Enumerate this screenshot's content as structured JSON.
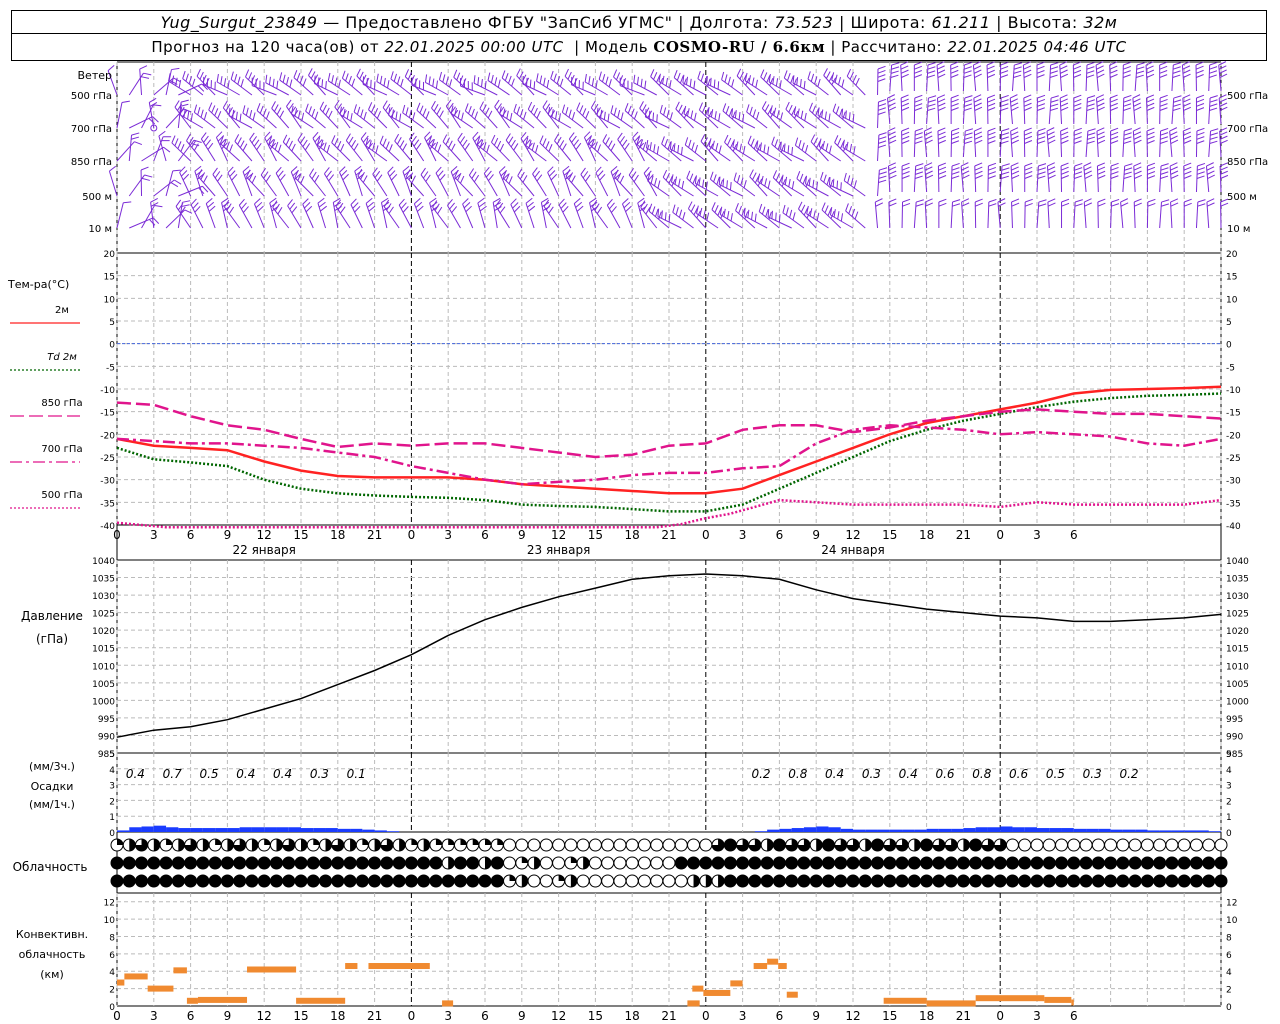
{
  "header": {
    "station": "Yug_Surgut_23849",
    "provider": "— Предоставлено ФГБУ \"ЗапСиб УГМС\"",
    "lon_label": "| Долгота:",
    "lon": "73.523",
    "lat_label": "| Широта:",
    "lat": "61.211",
    "alt_label": "| Высота:",
    "alt": "32м",
    "forecast_label": "Прогноз на 120 часа(ов) от",
    "forecast_time": "22.01.2025 00:00 UTC",
    "model_label": "| Модель",
    "model": "COSMO-RU / 6.6км",
    "calc_label": "| Рассчитано:",
    "calc_time": "22.01.2025 04:46 UTC"
  },
  "time_axis": {
    "hour_labels": [
      "0",
      "3",
      "6",
      "9",
      "12",
      "15",
      "18",
      "21",
      "0",
      "3",
      "6",
      "9",
      "12",
      "15",
      "18",
      "21",
      "0",
      "3",
      "6",
      "9",
      "12",
      "15",
      "18",
      "21",
      "0",
      "3",
      "6"
    ],
    "day_labels": [
      "22 января",
      "23 января",
      "24 января"
    ]
  },
  "panels": {
    "wind": {
      "title": "Ветер",
      "levels": [
        "500 гПа",
        "700 гПа",
        "850 гПа",
        "500 м",
        "10 м"
      ],
      "colors": {
        "barb": "#7b2bd6"
      }
    },
    "temperature": {
      "title": "Тем-ра(°C)",
      "legend": [
        {
          "label": "2м",
          "color": "#ff2222",
          "dash": "solid"
        },
        {
          "label": "Td 2м",
          "color": "#006600",
          "dash": "dotted"
        },
        {
          "label": "850 гПа",
          "color": "#e0148c",
          "dash": "long-dash"
        },
        {
          "label": "700 гПа",
          "color": "#e0148c",
          "dash": "dash-dot"
        },
        {
          "label": "500 гПа",
          "color": "#e0148c",
          "dash": "dotted"
        }
      ],
      "ticks": [
        "20",
        "15",
        "10",
        "5",
        "0",
        "-5",
        "-10",
        "-15",
        "-20",
        "-25",
        "-30",
        "-35",
        "-40"
      ]
    },
    "pressure": {
      "title": "Давление",
      "unit": "(гПа)",
      "ticks": [
        "1040",
        "1035",
        "1030",
        "1025",
        "1020",
        "1015",
        "1010",
        "1005",
        "1000",
        "995",
        "990",
        "985"
      ]
    },
    "precip": {
      "title_unit3": "(мм/3ч.)",
      "title": "Осадки",
      "title_unit1": "(мм/1ч.)",
      "ticks": [
        "5",
        "4",
        "3",
        "2",
        "1",
        "0"
      ],
      "labels": [
        {
          "t": 3,
          "v": "0.4"
        },
        {
          "t": 6,
          "v": "0.7"
        },
        {
          "t": 9,
          "v": "0.5"
        },
        {
          "t": 12,
          "v": "0.4"
        },
        {
          "t": 15,
          "v": "0.4"
        },
        {
          "t": 18,
          "v": "0.3"
        },
        {
          "t": 21,
          "v": "0.1"
        },
        {
          "t": 54,
          "v": "0.2"
        },
        {
          "t": 57,
          "v": "0.8"
        },
        {
          "t": 60,
          "v": "0.4"
        },
        {
          "t": 63,
          "v": "0.3"
        },
        {
          "t": 66,
          "v": "0.4"
        },
        {
          "t": 69,
          "v": "0.6"
        },
        {
          "t": 72,
          "v": "0.8"
        },
        {
          "t": 75,
          "v": "0.6"
        },
        {
          "t": 78,
          "v": "0.5"
        },
        {
          "t": 81,
          "v": "0.3"
        },
        {
          "t": 84,
          "v": "0.2"
        }
      ]
    },
    "clouds": {
      "title": "Облачность"
    },
    "convective": {
      "title_lines": [
        "Конвективн.",
        "облачность",
        "(км)"
      ],
      "ticks": [
        "12",
        "10",
        "8",
        "6",
        "4",
        "2",
        "0"
      ]
    }
  },
  "chart_data": [
    {
      "type": "line",
      "title": "Тем-ра(°C)",
      "x_unit": "hours from 22.01.2025 00:00 UTC",
      "ylim": [
        -40,
        20
      ],
      "series": [
        {
          "name": "2м",
          "x": [
            0,
            3,
            6,
            9,
            12,
            15,
            18,
            21,
            24,
            27,
            30,
            33,
            36,
            39,
            42,
            45,
            48,
            51,
            54,
            57,
            60,
            63,
            66,
            69,
            72,
            75,
            78,
            81,
            84,
            87,
            90
          ],
          "y": [
            -21,
            -22.5,
            -23,
            -23.5,
            -26,
            -28,
            -29.2,
            -29.5,
            -29.5,
            -29.5,
            -30,
            -31,
            -31.5,
            -32,
            -32.5,
            -33,
            -33,
            -32,
            -29,
            -26,
            -23,
            -20,
            -17.5,
            -16,
            -14.5,
            -13,
            -11,
            -10.2,
            -10,
            -9.8,
            -9.5
          ]
        },
        {
          "name": "Td 2м",
          "x": [
            0,
            3,
            6,
            9,
            12,
            15,
            18,
            21,
            24,
            27,
            30,
            33,
            36,
            39,
            42,
            45,
            48,
            51,
            54,
            57,
            60,
            63,
            66,
            69,
            72,
            75,
            78,
            81,
            84,
            87,
            90
          ],
          "y": [
            -23,
            -25.5,
            -26.2,
            -27,
            -30,
            -32,
            -33,
            -33.5,
            -33.8,
            -34,
            -34.5,
            -35.5,
            -35.8,
            -36,
            -36.5,
            -37,
            -37,
            -35.5,
            -32,
            -28.5,
            -25,
            -21.5,
            -19,
            -17,
            -15.5,
            -14,
            -12.8,
            -12,
            -11.5,
            -11.3,
            -11
          ]
        },
        {
          "name": "850 гПа",
          "x": [
            0,
            3,
            6,
            9,
            12,
            15,
            18,
            21,
            24,
            27,
            30,
            33,
            36,
            39,
            42,
            45,
            48,
            51,
            54,
            57,
            60,
            63,
            66,
            69,
            72,
            75,
            78,
            81,
            84,
            87,
            90
          ],
          "y": [
            -13,
            -13.5,
            -16,
            -18,
            -19,
            -21,
            -22.8,
            -22,
            -22.5,
            -22,
            -22,
            -23,
            -24,
            -25,
            -24.5,
            -22.5,
            -22,
            -19,
            -18,
            -18,
            -19.5,
            -18.5,
            -17,
            -16,
            -15,
            -14.5,
            -15,
            -15.5,
            -15.5,
            -16,
            -16.5
          ]
        },
        {
          "name": "700 гПа",
          "x": [
            0,
            3,
            6,
            9,
            12,
            15,
            18,
            21,
            24,
            27,
            30,
            33,
            36,
            39,
            42,
            45,
            48,
            51,
            54,
            57,
            60,
            63,
            66,
            69,
            72,
            75,
            78,
            81,
            84,
            87,
            90
          ],
          "y": [
            -21,
            -21.5,
            -22,
            -22,
            -22.5,
            -23,
            -24,
            -25,
            -27,
            -28.5,
            -30,
            -31,
            -30.5,
            -30,
            -29,
            -28.5,
            -28.5,
            -27.5,
            -27,
            -22,
            -19,
            -18,
            -18.5,
            -19,
            -20,
            -19.5,
            -20,
            -20.5,
            -22,
            -22.5,
            -21
          ]
        },
        {
          "name": "500 гПа",
          "x": [
            0,
            2,
            4,
            6,
            8,
            10,
            12,
            14,
            16,
            18,
            20,
            22,
            24,
            26,
            28,
            30,
            32,
            34,
            36,
            38,
            40,
            42,
            44,
            46,
            48,
            50,
            52,
            54,
            57,
            60,
            63,
            66,
            69,
            72,
            75,
            78,
            81,
            84,
            87,
            90
          ],
          "y": [
            -39.5,
            -40,
            -40.5,
            -41,
            -41,
            -41,
            -41,
            -41,
            -41,
            -41,
            -41,
            -41,
            -41,
            -41,
            -41,
            -41,
            -41,
            -41,
            -41,
            -41,
            -41,
            -41,
            -41,
            -39.8,
            -38.5,
            -37.5,
            -36,
            -34.5,
            -35,
            -35.5,
            -35.5,
            -35.5,
            -35.5,
            -36,
            -35,
            -35.5,
            -35.5,
            -35.5,
            -35.5,
            -34.5
          ]
        }
      ]
    },
    {
      "type": "line",
      "title": "Давление (гПа)",
      "x_unit": "hours",
      "ylim": [
        985,
        1040
      ],
      "series": [
        {
          "name": "pressure",
          "x": [
            0,
            3,
            6,
            9,
            12,
            15,
            18,
            21,
            24,
            27,
            30,
            33,
            36,
            39,
            42,
            45,
            48,
            51,
            54,
            57,
            60,
            63,
            66,
            69,
            72,
            75,
            78,
            81,
            84,
            87,
            90
          ],
          "y": [
            989.5,
            991.5,
            992.5,
            994.5,
            997.5,
            1000.5,
            1004.5,
            1008.5,
            1013,
            1018.5,
            1023,
            1026.5,
            1029.5,
            1032,
            1034.5,
            1035.5,
            1036,
            1035.5,
            1034.5,
            1031.5,
            1029,
            1027.5,
            1026,
            1025,
            1024,
            1023.5,
            1022.5,
            1022.5,
            1023,
            1023.5,
            1024.5
          ]
        }
      ]
    },
    {
      "type": "bar",
      "title": "Осадки (мм/1ч.)",
      "x_unit": "hours",
      "ylim": [
        0,
        5
      ],
      "series": [
        {
          "name": "precip_1h",
          "x": [
            1,
            2,
            3,
            4,
            5,
            6,
            7,
            8,
            9,
            10,
            11,
            12,
            13,
            14,
            15,
            16,
            17,
            18,
            19,
            20,
            21,
            22,
            23,
            53,
            54,
            55,
            56,
            57,
            58,
            59,
            60,
            61,
            62,
            63,
            64,
            65,
            66,
            67,
            68,
            69,
            70,
            71,
            72,
            73,
            74,
            75,
            76,
            77,
            78,
            79,
            80,
            81,
            82,
            83,
            84,
            85,
            86,
            87,
            88,
            89,
            90
          ],
          "y": [
            0.1,
            0.3,
            0.35,
            0.4,
            0.3,
            0.25,
            0.25,
            0.25,
            0.25,
            0.25,
            0.3,
            0.3,
            0.3,
            0.3,
            0.3,
            0.25,
            0.25,
            0.25,
            0.2,
            0.2,
            0.15,
            0.1,
            0.05,
            0.05,
            0.15,
            0.2,
            0.25,
            0.3,
            0.35,
            0.3,
            0.2,
            0.15,
            0.15,
            0.15,
            0.15,
            0.15,
            0.15,
            0.2,
            0.2,
            0.2,
            0.25,
            0.3,
            0.3,
            0.35,
            0.3,
            0.3,
            0.25,
            0.25,
            0.25,
            0.2,
            0.2,
            0.2,
            0.15,
            0.15,
            0.15,
            0.1,
            0.1,
            0.1,
            0.1,
            0.1,
            0.05
          ]
        }
      ]
    },
    {
      "type": "bar",
      "title": "Конвективн. облачность (км)",
      "x_unit": "hours",
      "ylim": [
        0,
        13
      ],
      "series": [
        {
          "name": "convective_clouds",
          "segments": [
            {
              "x0": 0,
              "x1": 0.6,
              "y": 2.7
            },
            {
              "x0": 0.6,
              "x1": 2.5,
              "y": 3.4
            },
            {
              "x0": 2.5,
              "x1": 4.6,
              "y": 2.0
            },
            {
              "x0": 4.6,
              "x1": 5.7,
              "y": 4.1
            },
            {
              "x0": 5.7,
              "x1": 6.6,
              "y": 0.6
            },
            {
              "x0": 6.6,
              "x1": 10.6,
              "y": 0.7
            },
            {
              "x0": 10.6,
              "x1": 14.6,
              "y": 4.2
            },
            {
              "x0": 14.6,
              "x1": 18.6,
              "y": 0.6
            },
            {
              "x0": 18.6,
              "x1": 19.6,
              "y": 4.6
            },
            {
              "x0": 20.5,
              "x1": 25.5,
              "y": 4.6
            },
            {
              "x0": 26.5,
              "x1": 27.4,
              "y": 0.3
            },
            {
              "x0": 46.5,
              "x1": 47.5,
              "y": 0.3
            },
            {
              "x0": 46.9,
              "x1": 47.8,
              "y": 2.0
            },
            {
              "x0": 47.8,
              "x1": 50.0,
              "y": 1.5
            },
            {
              "x0": 50.0,
              "x1": 51.0,
              "y": 2.6
            },
            {
              "x0": 51.9,
              "x1": 53.0,
              "y": 4.6
            },
            {
              "x0": 53.0,
              "x1": 53.9,
              "y": 5.1
            },
            {
              "x0": 53.9,
              "x1": 54.6,
              "y": 4.6
            },
            {
              "x0": 54.6,
              "x1": 55.5,
              "y": 1.3
            },
            {
              "x0": 62.5,
              "x1": 66.0,
              "y": 0.6
            },
            {
              "x0": 66.0,
              "x1": 70.0,
              "y": 0.3
            },
            {
              "x0": 70.0,
              "x1": 75.6,
              "y": 0.9
            },
            {
              "x0": 75.6,
              "x1": 77.8,
              "y": 0.7
            },
            {
              "x0": 77.8,
              "x1": 78.0,
              "y": 0.4
            }
          ]
        }
      ]
    }
  ]
}
